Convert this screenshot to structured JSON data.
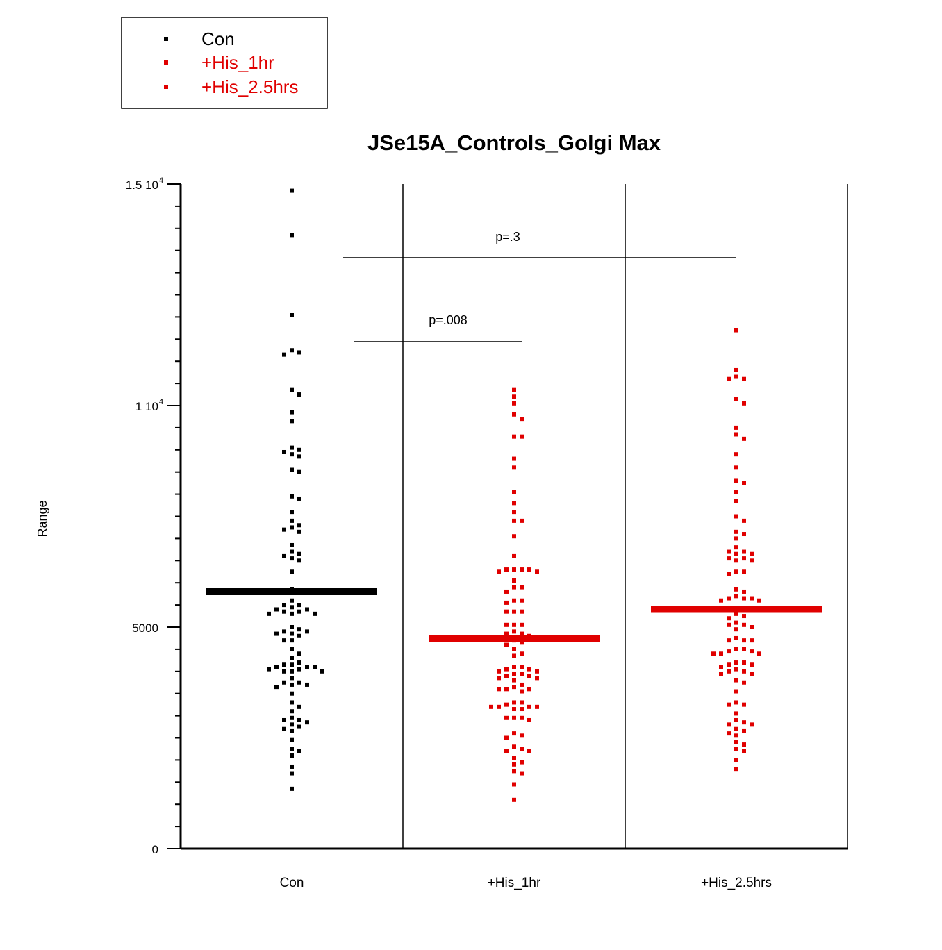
{
  "chart_data": {
    "type": "scatter",
    "title": "JSe15A_Controls_Golgi Max",
    "ylabel": "Range",
    "xlabel": "",
    "ylim": [
      0,
      15000
    ],
    "y_tick_labels": [
      "0",
      "5000",
      "1 10",
      "1.5 10"
    ],
    "y_tick_exponent": "4",
    "legend_position": "top-left",
    "legend": [
      {
        "label": "Con",
        "color": "#000000"
      },
      {
        "label": "+His_1hr",
        "color": "#e00000"
      },
      {
        "label": "+His_2.5hrs",
        "color": "#e00000"
      }
    ],
    "categories": [
      "Con",
      "+His_1hr",
      "+His_2.5hrs"
    ],
    "series": [
      {
        "name": "Con",
        "color": "#000000",
        "mean": 5800,
        "values": [
          14850,
          13850,
          12050,
          11200,
          11250,
          11150,
          10350,
          10250,
          9850,
          9650,
          9000,
          8900,
          8950,
          8850,
          9050,
          8550,
          8500,
          7900,
          7950,
          7600,
          7400,
          7300,
          7250,
          7150,
          7200,
          6850,
          6650,
          6550,
          6500,
          6600,
          6700,
          6250,
          5850,
          5800,
          5600,
          5500,
          5400,
          5350,
          5300,
          5350,
          5300,
          5300,
          5400,
          5450,
          5500,
          5000,
          4900,
          4850,
          4800,
          4900,
          4850,
          4950,
          4700,
          4700,
          4500,
          4400,
          4300,
          4200,
          4150,
          4100,
          4000,
          4050,
          4100,
          4000,
          4050,
          4100,
          4150,
          4000,
          3850,
          3750,
          3700,
          3650,
          3750,
          3700,
          3500,
          3300,
          3200,
          3100,
          2900,
          2850,
          2900,
          2750,
          2700,
          2650,
          2800,
          2950,
          2450,
          2250,
          2200,
          2100,
          1850,
          1700,
          1350
        ]
      },
      {
        "name": "+His_1hr",
        "color": "#e00000",
        "mean": 4750,
        "values": [
          10350,
          10200,
          10050,
          9800,
          9700,
          9300,
          9300,
          8800,
          8600,
          8050,
          7800,
          7600,
          7400,
          7400,
          7050,
          6600,
          6300,
          6300,
          6250,
          6300,
          6250,
          6300,
          6050,
          5900,
          5800,
          5900,
          5600,
          5600,
          5550,
          5350,
          5350,
          5350,
          5050,
          5050,
          5050,
          4900,
          4850,
          4800,
          4850,
          4700,
          4650,
          4600,
          4500,
          4400,
          4350,
          4100,
          4050,
          4100,
          4050,
          4000,
          3950,
          3950,
          4000,
          3900,
          3850,
          3850,
          3900,
          3800,
          3700,
          3600,
          3650,
          3600,
          3550,
          3600,
          3300,
          3200,
          3200,
          3150,
          3200,
          3250,
          3150,
          3200,
          3300,
          2950,
          2900,
          2950,
          2950,
          2600,
          2550,
          2500,
          2300,
          2250,
          2200,
          2200,
          2050,
          1950,
          1900,
          1750,
          1700,
          1450,
          1100
        ]
      },
      {
        "name": "+His_2.5hrs",
        "color": "#e00000",
        "mean": 5400,
        "values": [
          11700,
          10800,
          10650,
          10600,
          10600,
          10150,
          10050,
          9500,
          9350,
          9250,
          8900,
          8600,
          8300,
          8250,
          8050,
          7850,
          7500,
          7400,
          7150,
          7100,
          7000,
          6800,
          6700,
          6650,
          6550,
          6550,
          6500,
          6500,
          6650,
          6700,
          6250,
          6250,
          6200,
          5850,
          5800,
          5700,
          5650,
          5600,
          5650,
          5650,
          5600,
          5300,
          5250,
          5200,
          5050,
          5050,
          5000,
          5100,
          4950,
          4750,
          4700,
          4700,
          4700,
          4500,
          4400,
          4450,
          4400,
          4450,
          4400,
          4500,
          4200,
          4150,
          4150,
          4100,
          4200,
          4050,
          4000,
          3950,
          3950,
          4000,
          3800,
          3750,
          3550,
          3250,
          3300,
          3250,
          3050,
          2900,
          2850,
          2800,
          2800,
          2700,
          2650,
          2600,
          2550,
          2400,
          2350,
          2250,
          2200,
          2000,
          1800
        ]
      }
    ],
    "comparisons": [
      {
        "label": "p=.008",
        "from": "Con",
        "to": "+His_1hr"
      },
      {
        "label": "p=.3",
        "from": "Con",
        "to": "+His_2.5hrs"
      }
    ]
  }
}
